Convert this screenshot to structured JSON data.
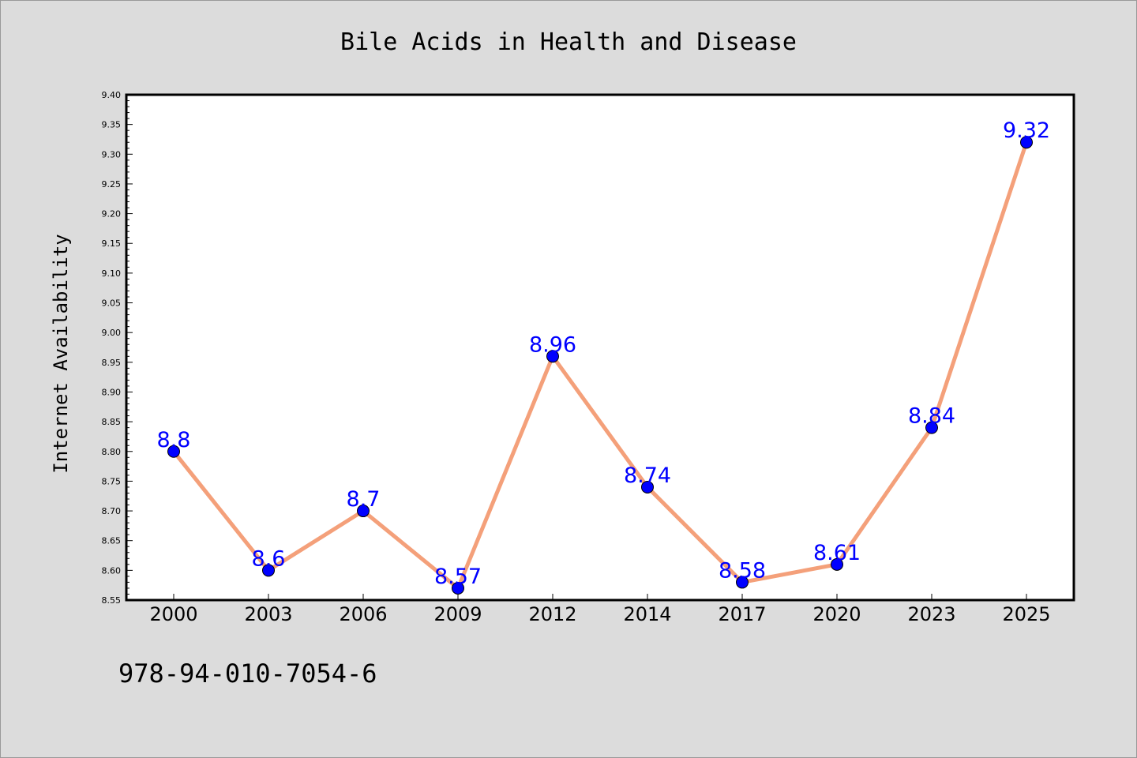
{
  "chart_data": {
    "type": "line",
    "title": "Bile Acids in Health and Disease",
    "xlabel": "",
    "ylabel": "Internet Availability",
    "categories": [
      "2000",
      "2003",
      "2006",
      "2009",
      "2012",
      "2014",
      "2017",
      "2020",
      "2023",
      "2025"
    ],
    "values": [
      8.8,
      8.6,
      8.7,
      8.57,
      8.96,
      8.74,
      8.58,
      8.61,
      8.84,
      9.32
    ],
    "data_labels": [
      "8.8",
      "8.6",
      "8.7",
      "8.57",
      "8.96",
      "8.74",
      "8.58",
      "8.61",
      "8.84",
      "9.32"
    ],
    "ylim": [
      8.55,
      9.4
    ],
    "yticks": [
      "8.55",
      "8.60",
      "8.65",
      "8.70",
      "8.75",
      "8.80",
      "8.85",
      "8.90",
      "8.95",
      "9.00",
      "9.05",
      "9.10",
      "9.15",
      "9.20",
      "9.25",
      "9.30",
      "9.35",
      "9.40"
    ],
    "grid": false,
    "legend": "none",
    "line_color": "#f4a07a",
    "marker_color": "#0000ff",
    "label_color": "#0000ff",
    "background_color": "#dcdcdc",
    "plot_background_color": "#ffffff"
  },
  "footer": {
    "isbn": "978-94-010-7054-6"
  }
}
